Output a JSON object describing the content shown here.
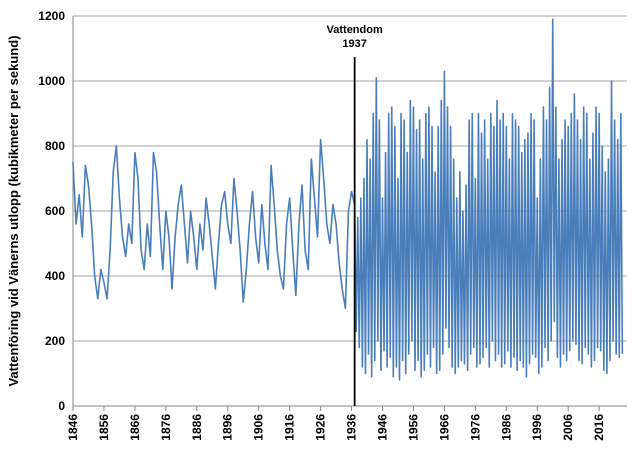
{
  "chart_data": {
    "type": "line",
    "y_label": "Vattenföring vid Vänerns utlopp (kubikmeter per sekund)",
    "annotation": {
      "lines": [
        "Vattendom",
        "1937"
      ],
      "x": 1937
    },
    "color": "#4a7ebb",
    "xlim": [
      1846,
      2025
    ],
    "ylim": [
      0,
      1200
    ],
    "xticks": [
      1846,
      1856,
      1866,
      1876,
      1886,
      1896,
      1906,
      1916,
      1926,
      1936,
      1946,
      1956,
      1966,
      1976,
      1986,
      1996,
      2006,
      2016
    ],
    "yticks": [
      0,
      200,
      400,
      600,
      800,
      1000,
      1200
    ],
    "grid": true,
    "x": [
      1846,
      1847,
      1848,
      1849,
      1850,
      1851,
      1852,
      1853,
      1854,
      1855,
      1856,
      1857,
      1858,
      1859,
      1860,
      1861,
      1862,
      1863,
      1864,
      1865,
      1866,
      1867,
      1868,
      1869,
      1870,
      1871,
      1872,
      1873,
      1874,
      1875,
      1876,
      1877,
      1878,
      1879,
      1880,
      1881,
      1882,
      1883,
      1884,
      1885,
      1886,
      1887,
      1888,
      1889,
      1890,
      1891,
      1892,
      1893,
      1894,
      1895,
      1896,
      1897,
      1898,
      1899,
      1900,
      1901,
      1902,
      1903,
      1904,
      1905,
      1906,
      1907,
      1908,
      1909,
      1910,
      1911,
      1912,
      1913,
      1914,
      1915,
      1916,
      1917,
      1918,
      1919,
      1920,
      1921,
      1922,
      1923,
      1924,
      1925,
      1926,
      1927,
      1928,
      1929,
      1930,
      1931,
      1932,
      1933,
      1934,
      1935,
      1936,
      1937,
      1937.5,
      1938,
      1938.5,
      1939,
      1939.5,
      1940,
      1940.5,
      1941,
      1941.5,
      1942,
      1942.5,
      1943,
      1943.5,
      1944,
      1944.5,
      1945,
      1945.5,
      1946,
      1946.5,
      1947,
      1947.5,
      1948,
      1948.5,
      1949,
      1949.5,
      1950,
      1950.5,
      1951,
      1951.5,
      1952,
      1952.5,
      1953,
      1953.5,
      1954,
      1954.5,
      1955,
      1955.5,
      1956,
      1956.5,
      1957,
      1957.5,
      1958,
      1958.5,
      1959,
      1959.5,
      1960,
      1960.5,
      1961,
      1961.5,
      1962,
      1962.5,
      1963,
      1963.5,
      1964,
      1964.5,
      1965,
      1965.5,
      1966,
      1966.5,
      1967,
      1967.5,
      1968,
      1968.5,
      1969,
      1969.5,
      1970,
      1970.5,
      1971,
      1971.5,
      1972,
      1972.5,
      1973,
      1973.5,
      1974,
      1974.5,
      1975,
      1975.5,
      1976,
      1976.5,
      1977,
      1977.5,
      1978,
      1978.5,
      1979,
      1979.5,
      1980,
      1980.5,
      1981,
      1981.5,
      1982,
      1982.5,
      1983,
      1983.5,
      1984,
      1984.5,
      1985,
      1985.5,
      1986,
      1986.5,
      1987,
      1987.5,
      1988,
      1988.5,
      1989,
      1989.5,
      1990,
      1990.5,
      1991,
      1991.5,
      1992,
      1992.5,
      1993,
      1993.5,
      1994,
      1994.5,
      1995,
      1995.5,
      1996,
      1996.5,
      1997,
      1997.5,
      1998,
      1998.5,
      1999,
      1999.5,
      2000,
      2000.5,
      2001,
      2001.5,
      2002,
      2002.5,
      2003,
      2003.5,
      2004,
      2004.5,
      2005,
      2005.5,
      2006,
      2006.5,
      2007,
      2007.5,
      2008,
      2008.5,
      2009,
      2009.5,
      2010,
      2010.5,
      2011,
      2011.5,
      2012,
      2012.5,
      2013,
      2013.5,
      2014,
      2014.5,
      2015,
      2015.5,
      2016,
      2016.5,
      2017,
      2017.5,
      2018,
      2018.5,
      2019,
      2019.5,
      2020,
      2020.5,
      2021,
      2021.5,
      2022,
      2022.5,
      2023,
      2023.5
    ],
    "values": [
      750,
      560,
      650,
      520,
      740,
      680,
      560,
      400,
      330,
      420,
      380,
      330,
      480,
      720,
      800,
      640,
      520,
      460,
      560,
      500,
      780,
      700,
      480,
      420,
      560,
      460,
      780,
      720,
      560,
      420,
      600,
      520,
      360,
      520,
      620,
      680,
      560,
      440,
      600,
      520,
      420,
      560,
      480,
      640,
      560,
      460,
      360,
      500,
      620,
      660,
      560,
      500,
      700,
      600,
      480,
      320,
      420,
      560,
      660,
      520,
      440,
      620,
      500,
      420,
      740,
      620,
      480,
      400,
      360,
      560,
      640,
      480,
      340,
      560,
      680,
      480,
      420,
      760,
      640,
      520,
      820,
      700,
      560,
      500,
      620,
      560,
      440,
      360,
      300,
      600,
      660,
      620,
      230,
      580,
      180,
      640,
      120,
      700,
      100,
      820,
      160,
      760,
      90,
      900,
      140,
      1010,
      200,
      880,
      110,
      640,
      170,
      780,
      120,
      900,
      150,
      920,
      90,
      860,
      120,
      700,
      80,
      900,
      140,
      880,
      100,
      780,
      160,
      940,
      200,
      920,
      110,
      850,
      140,
      880,
      90,
      760,
      110,
      900,
      160,
      920,
      120,
      860,
      180,
      720,
      100,
      860,
      110,
      940,
      160,
      1030,
      240,
      920,
      180,
      860,
      120,
      760,
      100,
      640,
      120,
      720,
      140,
      600,
      130,
      680,
      110,
      880,
      160,
      900,
      180,
      700,
      120,
      900,
      130,
      840,
      150,
      880,
      180,
      760,
      120,
      900,
      200,
      860,
      140,
      940,
      160,
      880,
      120,
      900,
      130,
      860,
      170,
      760,
      120,
      900,
      150,
      880,
      110,
      860,
      140,
      780,
      120,
      820,
      90,
      840,
      130,
      900,
      160,
      880,
      150,
      640,
      100,
      760,
      120,
      920,
      180,
      880,
      140,
      980,
      200,
      1190,
      260,
      920,
      150,
      760,
      120,
      820,
      160,
      880,
      140,
      860,
      170,
      900,
      200,
      960,
      190,
      880,
      140,
      820,
      130,
      920,
      180,
      900,
      160,
      760,
      120,
      840,
      140,
      920,
      180,
      900,
      170,
      800,
      110,
      720,
      100,
      760,
      140,
      1000,
      200,
      880,
      160,
      820,
      150,
      900,
      160
    ]
  }
}
